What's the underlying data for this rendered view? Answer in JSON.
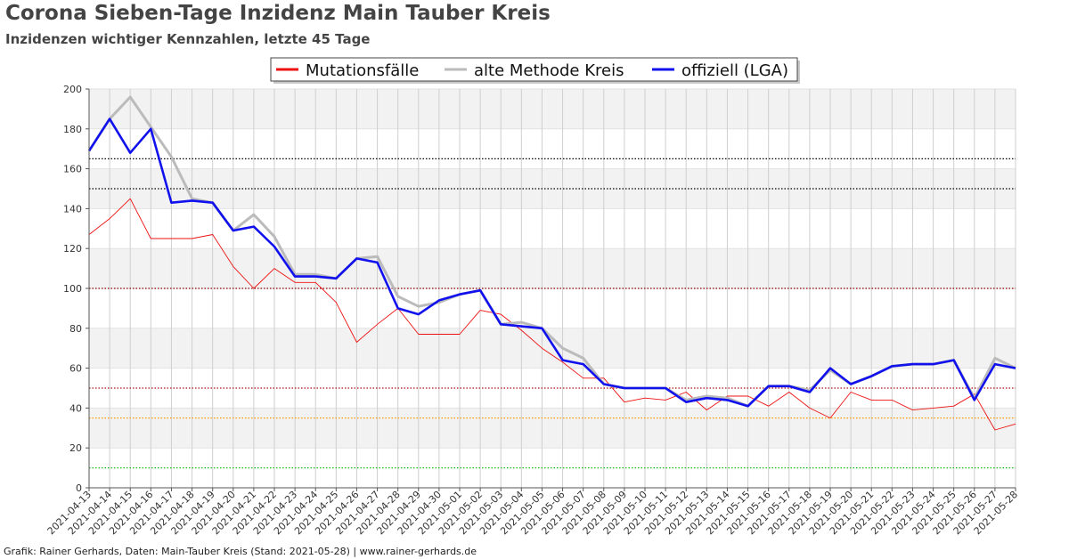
{
  "header": {
    "title": "Corona Sieben-Tage Inzidenz Main Tauber Kreis",
    "subtitle": "Inzidenzen wichtiger Kennzahlen, letzte 45 Tage"
  },
  "footer": {
    "credit": "Grafik: Rainer Gerhards, Daten: Main-Tauber Kreis (Stand: 2021-05-28) | www.rainer-gerhards.de"
  },
  "chart_data": {
    "type": "line",
    "title": "Corona Sieben-Tage Inzidenz Main Tauber Kreis",
    "subtitle": "Inzidenzen wichtiger Kennzahlen, letzte 45 Tage",
    "xlabel": "",
    "ylabel": "",
    "ylim": [
      0,
      200
    ],
    "yticks": [
      0,
      20,
      40,
      60,
      80,
      100,
      120,
      140,
      160,
      180,
      200
    ],
    "grid": true,
    "legend_position": "top-center",
    "x": [
      "2021-04-13",
      "2021-04-14",
      "2021-04-15",
      "2021-04-16",
      "2021-04-17",
      "2021-04-18",
      "2021-04-19",
      "2021-04-20",
      "2021-04-21",
      "2021-04-22",
      "2021-04-23",
      "2021-04-24",
      "2021-04-25",
      "2021-04-26",
      "2021-04-27",
      "2021-04-28",
      "2021-04-29",
      "2021-04-30",
      "2021-05-01",
      "2021-05-02",
      "2021-05-03",
      "2021-05-04",
      "2021-05-05",
      "2021-05-06",
      "2021-05-07",
      "2021-05-08",
      "2021-05-09",
      "2021-05-10",
      "2021-05-11",
      "2021-05-12",
      "2021-05-13",
      "2021-05-14",
      "2021-05-15",
      "2021-05-16",
      "2021-05-17",
      "2021-05-18",
      "2021-05-19",
      "2021-05-20",
      "2021-05-21",
      "2021-05-22",
      "2021-05-23",
      "2021-05-24",
      "2021-05-25",
      "2021-05-26",
      "2021-05-27",
      "2021-05-28"
    ],
    "series": [
      {
        "name": "Mutationsfälle",
        "color": "#ee1111",
        "values": [
          127,
          135,
          145,
          125,
          125,
          125,
          127,
          111,
          100,
          110,
          103,
          103,
          93,
          73,
          82,
          90,
          77,
          77,
          77,
          89,
          87,
          79,
          70,
          63,
          55,
          55,
          43,
          45,
          44,
          48,
          39,
          46,
          46,
          41,
          48,
          40,
          35,
          48,
          44,
          44,
          39,
          40,
          41,
          47,
          29,
          32
        ]
      },
      {
        "name": "alte Methode Kreis",
        "color": "#bbbbbb",
        "values": [
          169,
          185,
          196,
          181,
          166,
          145,
          143,
          129,
          137,
          126,
          107,
          107,
          105,
          115,
          116,
          96,
          91,
          93,
          97,
          99,
          82,
          83,
          80,
          70,
          65,
          52,
          50,
          50,
          50,
          44,
          46,
          45,
          41,
          51,
          51,
          49,
          59,
          52,
          56,
          61,
          62,
          62,
          64,
          45,
          65,
          60
        ]
      },
      {
        "name": "offiziell (LGA)",
        "color": "#1111ee",
        "values": [
          169,
          185,
          168,
          180,
          143,
          144,
          143,
          129,
          131,
          121,
          106,
          106,
          105,
          115,
          113,
          90,
          87,
          94,
          97,
          99,
          82,
          81,
          80,
          64,
          62,
          52,
          50,
          50,
          50,
          43,
          45,
          44,
          41,
          51,
          51,
          48,
          60,
          52,
          56,
          61,
          62,
          62,
          64,
          44,
          62,
          60
        ]
      }
    ],
    "reference_lines": [
      {
        "value": 165,
        "color": "#000000"
      },
      {
        "value": 150,
        "color": "#000000"
      },
      {
        "value": 100,
        "color": "#8b0000"
      },
      {
        "value": 50,
        "color": "#aa1111"
      },
      {
        "value": 35,
        "color": "#ff9900"
      },
      {
        "value": 10,
        "color": "#22bb22"
      }
    ]
  }
}
